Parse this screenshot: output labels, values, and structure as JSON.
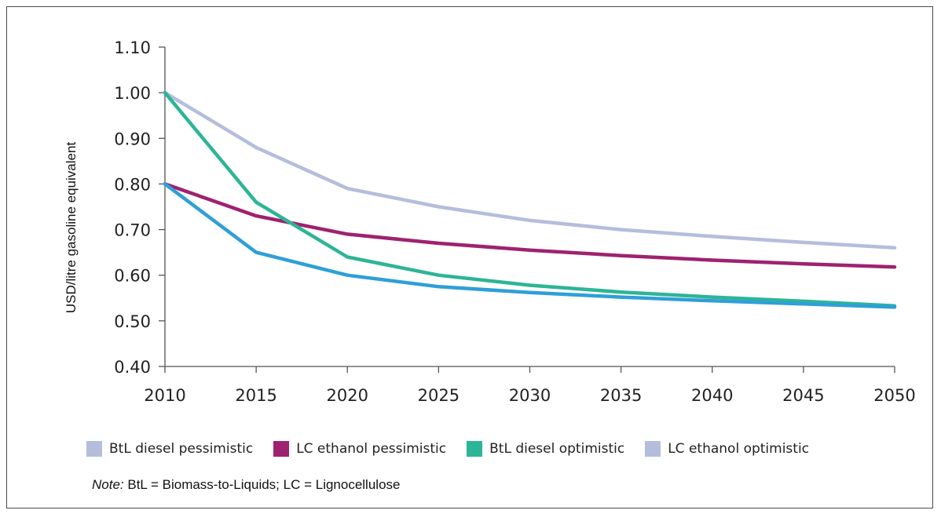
{
  "chart_data": {
    "type": "line",
    "title": "",
    "xlabel": "",
    "ylabel": "USD/litre gasoline equivalent",
    "x": [
      2010,
      2015,
      2020,
      2025,
      2030,
      2035,
      2040,
      2045,
      2050
    ],
    "x_ticks": [
      "2010",
      "2015",
      "2020",
      "2025",
      "2030",
      "2035",
      "2040",
      "2045",
      "2050"
    ],
    "y_ticks": [
      "0.40",
      "0.50",
      "0.60",
      "0.70",
      "0.80",
      "0.90",
      "1.00",
      "1.10"
    ],
    "xlim": [
      2010,
      2050
    ],
    "ylim": [
      0.4,
      1.1
    ],
    "grid": false,
    "legend_position": "bottom",
    "series": [
      {
        "name": "BtL diesel pessimistic",
        "color": "#b4bedc",
        "values": [
          1.0,
          0.88,
          0.79,
          0.75,
          0.72,
          0.7,
          0.685,
          0.672,
          0.66
        ]
      },
      {
        "name": "LC ethanol pessimistic",
        "color": "#9e2270",
        "values": [
          0.8,
          0.73,
          0.69,
          0.67,
          0.655,
          0.643,
          0.633,
          0.625,
          0.618
        ]
      },
      {
        "name": "BtL diesel optimistic",
        "color": "#2cb596",
        "values": [
          1.0,
          0.76,
          0.64,
          0.6,
          0.578,
          0.563,
          0.552,
          0.543,
          0.533
        ]
      },
      {
        "name": "LC ethanol optimistic",
        "color": "#2f9fd8",
        "legend_color": "#b4bedc",
        "values": [
          0.8,
          0.65,
          0.6,
          0.575,
          0.562,
          0.552,
          0.544,
          0.537,
          0.53
        ]
      }
    ]
  },
  "legend": [
    {
      "label": "BtL diesel pessimistic",
      "color": "#b4bedc"
    },
    {
      "label": "LC ethanol pessimistic",
      "color": "#9e2270"
    },
    {
      "label": "BtL diesel optimistic",
      "color": "#2cb596"
    },
    {
      "label": "LC ethanol optimistic",
      "color": "#b4bedc"
    }
  ],
  "note": {
    "prefix": "Note:",
    "text": " BtL = Biomass-to-Liquids; LC = Lignocellulose"
  }
}
